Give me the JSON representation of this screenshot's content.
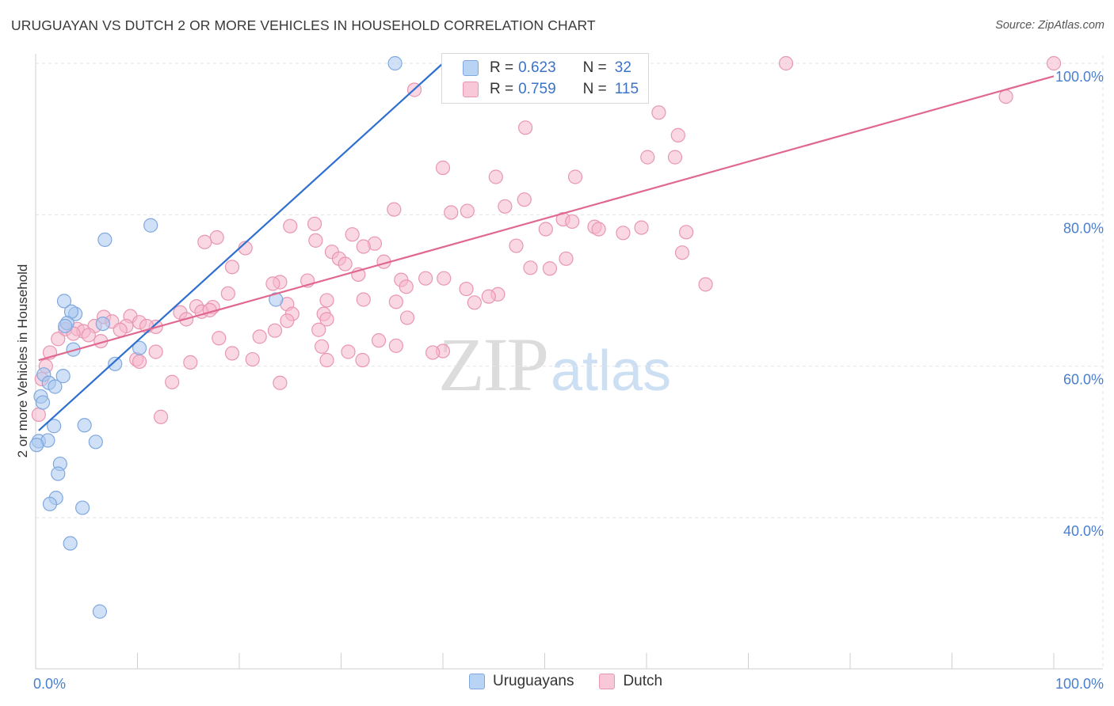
{
  "title": "URUGUAYAN VS DUTCH 2 OR MORE VEHICLES IN HOUSEHOLD CORRELATION CHART",
  "source": "Source: ZipAtlas.com",
  "watermark": {
    "zip": "ZIP",
    "atlas": "atlas"
  },
  "colors": {
    "blue_fill": "#a9c8f0",
    "blue_stroke": "#7fa8de",
    "blue_line": "#2f6fd0",
    "pink_fill": "#f5b8cc",
    "pink_stroke": "#e896b2",
    "pink_line": "#e0688f",
    "grid": "#e3e3e3",
    "axis_label": "#4a7fd0"
  },
  "legend": {
    "rows": [
      {
        "r_label": "R =",
        "r_value": "0.623",
        "n_label": "N =",
        "n_value": "32",
        "series": "blue"
      },
      {
        "r_label": "R =",
        "r_value": "0.759",
        "n_label": "N =",
        "n_value": "115",
        "series": "pink"
      }
    ]
  },
  "bottom_legend": [
    {
      "label": "Uruguayans",
      "series": "blue"
    },
    {
      "label": "Dutch",
      "series": "pink"
    }
  ],
  "chart_data": {
    "type": "scatter",
    "title": "URUGUAYAN VS DUTCH 2 OR MORE VEHICLES IN HOUSEHOLD CORRELATION CHART",
    "xlabel": "",
    "ylabel": "2 or more Vehicles in Household",
    "xlim": [
      0,
      100
    ],
    "ylim": [
      20,
      102
    ],
    "x_tick_labels": [
      "0.0%",
      "100.0%"
    ],
    "y_ticks": [
      {
        "value": 40,
        "label": "40.0%"
      },
      {
        "value": 60,
        "label": "60.0%"
      },
      {
        "value": 80,
        "label": "80.0%"
      },
      {
        "value": 100,
        "label": "100.0%"
      }
    ],
    "grid": true,
    "series": [
      {
        "name": "Uruguayans",
        "color": "blue",
        "trend": {
          "x0": 0.3,
          "y0": 51.5,
          "x1": 40,
          "y1": 100
        },
        "points": [
          [
            35.3,
            100
          ],
          [
            11.3,
            78.6
          ],
          [
            6.8,
            76.7
          ],
          [
            23.6,
            68.8
          ],
          [
            2.8,
            68.6
          ],
          [
            3.9,
            66.9
          ],
          [
            3.5,
            67.2
          ],
          [
            3.1,
            65.7
          ],
          [
            2.9,
            65.3
          ],
          [
            6.6,
            65.6
          ],
          [
            3.7,
            62.2
          ],
          [
            10.2,
            62.4
          ],
          [
            7.8,
            60.3
          ],
          [
            0.8,
            58.9
          ],
          [
            2.7,
            58.7
          ],
          [
            1.3,
            57.8
          ],
          [
            1.9,
            57.3
          ],
          [
            0.5,
            56.0
          ],
          [
            0.7,
            55.2
          ],
          [
            1.8,
            52.1
          ],
          [
            4.8,
            52.2
          ],
          [
            0.3,
            50.1
          ],
          [
            1.2,
            50.2
          ],
          [
            5.9,
            50.0
          ],
          [
            2.4,
            47.1
          ],
          [
            2.2,
            45.8
          ],
          [
            2.0,
            42.6
          ],
          [
            1.4,
            41.8
          ],
          [
            4.6,
            41.3
          ],
          [
            3.4,
            36.6
          ],
          [
            6.3,
            27.6
          ],
          [
            0.1,
            49.6
          ]
        ]
      },
      {
        "name": "Dutch",
        "color": "pink",
        "trend": {
          "x0": 0.3,
          "y0": 60.8,
          "x1": 100,
          "y1": 98.3
        },
        "points": [
          [
            41.9,
            100
          ],
          [
            73.7,
            100
          ],
          [
            100,
            100
          ],
          [
            37.2,
            96.5
          ],
          [
            95.3,
            95.6
          ],
          [
            61.2,
            93.5
          ],
          [
            48.1,
            91.5
          ],
          [
            63.1,
            90.5
          ],
          [
            60.1,
            87.6
          ],
          [
            40.0,
            86.2
          ],
          [
            45.2,
            85.0
          ],
          [
            53.0,
            85.0
          ],
          [
            48.0,
            82.0
          ],
          [
            46.1,
            81.1
          ],
          [
            35.2,
            80.7
          ],
          [
            42.4,
            80.5
          ],
          [
            40.8,
            80.3
          ],
          [
            51.8,
            79.4
          ],
          [
            52.7,
            79.1
          ],
          [
            25.0,
            78.5
          ],
          [
            27.4,
            78.8
          ],
          [
            54.9,
            78.4
          ],
          [
            55.3,
            78.1
          ],
          [
            59.5,
            78.3
          ],
          [
            50.1,
            78.1
          ],
          [
            57.7,
            77.6
          ],
          [
            63.9,
            77.7
          ],
          [
            31.1,
            77.4
          ],
          [
            17.8,
            77.0
          ],
          [
            27.5,
            76.6
          ],
          [
            33.3,
            76.2
          ],
          [
            16.6,
            76.4
          ],
          [
            32.2,
            75.8
          ],
          [
            20.6,
            75.6
          ],
          [
            29.1,
            75.1
          ],
          [
            47.2,
            75.9
          ],
          [
            63.5,
            75.0
          ],
          [
            29.8,
            74.2
          ],
          [
            34.2,
            73.8
          ],
          [
            52.1,
            74.2
          ],
          [
            19.3,
            73.1
          ],
          [
            30.4,
            73.5
          ],
          [
            48.6,
            73.0
          ],
          [
            50.5,
            72.9
          ],
          [
            31.7,
            72.1
          ],
          [
            38.3,
            71.6
          ],
          [
            24.0,
            71.1
          ],
          [
            26.7,
            71.3
          ],
          [
            35.9,
            71.4
          ],
          [
            40.1,
            71.6
          ],
          [
            23.3,
            70.9
          ],
          [
            36.4,
            70.5
          ],
          [
            42.3,
            70.2
          ],
          [
            65.8,
            70.8
          ],
          [
            45.4,
            69.5
          ],
          [
            44.5,
            69.2
          ],
          [
            18.9,
            69.6
          ],
          [
            32.2,
            68.8
          ],
          [
            28.6,
            68.7
          ],
          [
            35.4,
            68.5
          ],
          [
            43.1,
            68.4
          ],
          [
            24.7,
            68.2
          ],
          [
            17.4,
            67.8
          ],
          [
            15.8,
            67.9
          ],
          [
            16.3,
            67.2
          ],
          [
            17.1,
            67.4
          ],
          [
            14.2,
            67.1
          ],
          [
            25.2,
            66.9
          ],
          [
            28.3,
            66.9
          ],
          [
            9.3,
            66.6
          ],
          [
            6.7,
            66.5
          ],
          [
            14.8,
            66.2
          ],
          [
            24.7,
            66.0
          ],
          [
            28.6,
            66.2
          ],
          [
            36.5,
            66.4
          ],
          [
            7.5,
            65.9
          ],
          [
            10.2,
            65.8
          ],
          [
            8.9,
            65.3
          ],
          [
            11.8,
            65.2
          ],
          [
            5.8,
            65.3
          ],
          [
            4.1,
            64.9
          ],
          [
            4.7,
            64.6
          ],
          [
            2.9,
            64.9
          ],
          [
            8.3,
            64.8
          ],
          [
            10.9,
            65.3
          ],
          [
            3.7,
            64.3
          ],
          [
            5.2,
            64.1
          ],
          [
            2.2,
            63.6
          ],
          [
            6.4,
            63.3
          ],
          [
            18.0,
            63.7
          ],
          [
            22.0,
            63.9
          ],
          [
            27.8,
            64.8
          ],
          [
            23.5,
            64.7
          ],
          [
            33.7,
            63.4
          ],
          [
            40.0,
            62.0
          ],
          [
            28.1,
            62.6
          ],
          [
            30.7,
            61.9
          ],
          [
            39.0,
            61.8
          ],
          [
            35.4,
            62.7
          ],
          [
            19.3,
            61.7
          ],
          [
            11.8,
            61.9
          ],
          [
            9.9,
            60.9
          ],
          [
            10.2,
            60.6
          ],
          [
            21.3,
            60.9
          ],
          [
            28.6,
            60.8
          ],
          [
            32.1,
            60.8
          ],
          [
            1.4,
            61.8
          ],
          [
            1.0,
            60.0
          ],
          [
            0.6,
            58.3
          ],
          [
            15.2,
            60.5
          ],
          [
            0.3,
            53.6
          ],
          [
            13.4,
            57.9
          ],
          [
            24.0,
            57.8
          ],
          [
            12.3,
            53.3
          ],
          [
            62.8,
            87.6
          ]
        ]
      }
    ]
  }
}
